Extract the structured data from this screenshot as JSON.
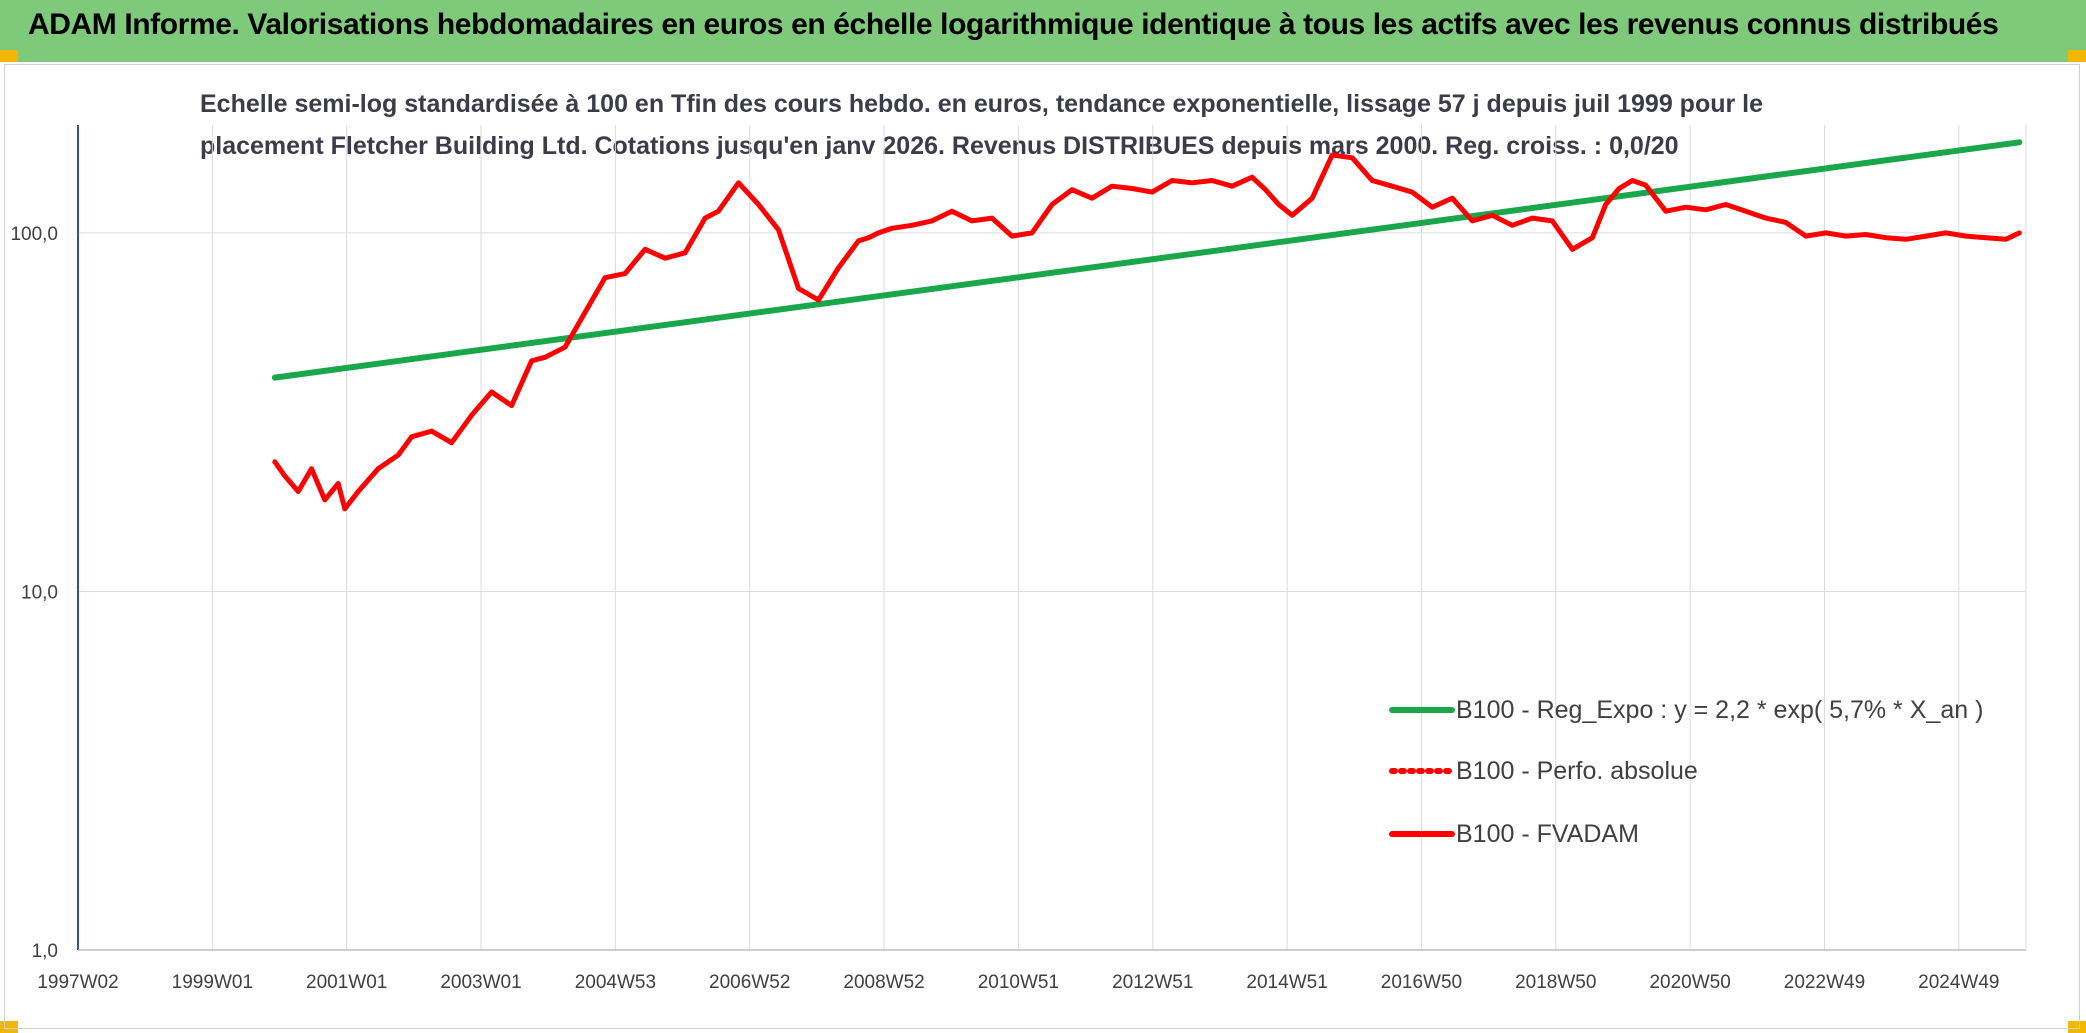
{
  "header": {
    "title": "ADAM Informe. Valorisations hebdomadaires en euros en échelle logarithmique identique à tous les actifs avec les revenus connus distribués"
  },
  "chart_data": {
    "type": "line",
    "title_lines": [
      "Echelle semi-log standardisée à 100 en Tfin des cours hebdo. en euros, tendance exponentielle, lissage 57 j depuis juil 1999 pour le",
      "placement Fletcher Building Ltd. Cotations jusqu'en janv 2026. Revenus DISTRIBUES depuis mars 2000. Reg. croiss. : 0,0/20"
    ],
    "y_scale": "log",
    "ylim": [
      1,
      200
    ],
    "y_ticks": [
      1,
      10,
      100
    ],
    "y_tick_labels": [
      "1,0",
      "10,0",
      "100,0"
    ],
    "x_tick_labels": [
      "1997W02",
      "1999W01",
      "2001W01",
      "2003W01",
      "2004W53",
      "2006W52",
      "2008W52",
      "2010W51",
      "2012W51",
      "2014W51",
      "2016W50",
      "2018W50",
      "2020W50",
      "2022W49",
      "2024W49"
    ],
    "x_range_years": [
      1997.0,
      2026.2
    ],
    "grid": "vertical",
    "legend_position": "bottom-right",
    "series": [
      {
        "name": "B100 - Reg_Expo : y = 2,2 * exp( 5,7% *  X_an )",
        "color": "#1aa64a",
        "style": "solid",
        "x": [
          1999.95,
          2026.1
        ],
        "y": [
          39.5,
          179
        ]
      },
      {
        "name": "B100 - Perfo. absolue",
        "color": "#ff0000",
        "style": "dotted",
        "x": [],
        "y": []
      },
      {
        "name": "B100 - FVADAM",
        "color": "#ff0000",
        "style": "solid",
        "x": [
          1999.95,
          2000.1,
          2000.3,
          2000.5,
          2000.7,
          2000.9,
          2001.0,
          2001.2,
          2001.5,
          2001.8,
          2002.0,
          2002.3,
          2002.6,
          2002.9,
          2003.2,
          2003.5,
          2003.8,
          2004.0,
          2004.3,
          2004.6,
          2004.9,
          2005.2,
          2005.5,
          2005.8,
          2006.1,
          2006.4,
          2006.6,
          2006.9,
          2007.2,
          2007.5,
          2007.8,
          2008.1,
          2008.4,
          2008.7,
          2008.85,
          2009.0,
          2009.2,
          2009.5,
          2009.8,
          2010.1,
          2010.4,
          2010.7,
          2011.0,
          2011.3,
          2011.6,
          2011.9,
          2012.2,
          2012.5,
          2012.8,
          2013.1,
          2013.4,
          2013.7,
          2014.0,
          2014.3,
          2014.6,
          2014.8,
          2015.0,
          2015.2,
          2015.5,
          2015.8,
          2016.1,
          2016.4,
          2016.7,
          2017.0,
          2017.3,
          2017.6,
          2017.9,
          2018.2,
          2018.5,
          2018.8,
          2019.1,
          2019.4,
          2019.7,
          2019.9,
          2020.1,
          2020.3,
          2020.5,
          2020.8,
          2021.1,
          2021.4,
          2021.7,
          2022.0,
          2022.3,
          2022.6,
          2022.9,
          2023.2,
          2023.5,
          2023.8,
          2024.1,
          2024.4,
          2024.7,
          2025.0,
          2025.3,
          2025.6,
          2025.9,
          2026.1
        ],
        "y": [
          23,
          21,
          19,
          22,
          18,
          20,
          17,
          19,
          22,
          24,
          27,
          28,
          26,
          31,
          36,
          33,
          44,
          45,
          48,
          60,
          75,
          77,
          90,
          85,
          88,
          110,
          115,
          138,
          120,
          102,
          70,
          65,
          80,
          95,
          97,
          100,
          103,
          105,
          108,
          115,
          108,
          110,
          98,
          100,
          120,
          132,
          125,
          135,
          133,
          130,
          140,
          138,
          140,
          135,
          143,
          132,
          120,
          112,
          125,
          165,
          162,
          140,
          135,
          130,
          118,
          125,
          108,
          112,
          105,
          110,
          108,
          90,
          97,
          120,
          133,
          140,
          136,
          115,
          118,
          116,
          120,
          115,
          110,
          107,
          98,
          100,
          98,
          99,
          97,
          96,
          98,
          100,
          98,
          97,
          96,
          100
        ]
      }
    ]
  }
}
